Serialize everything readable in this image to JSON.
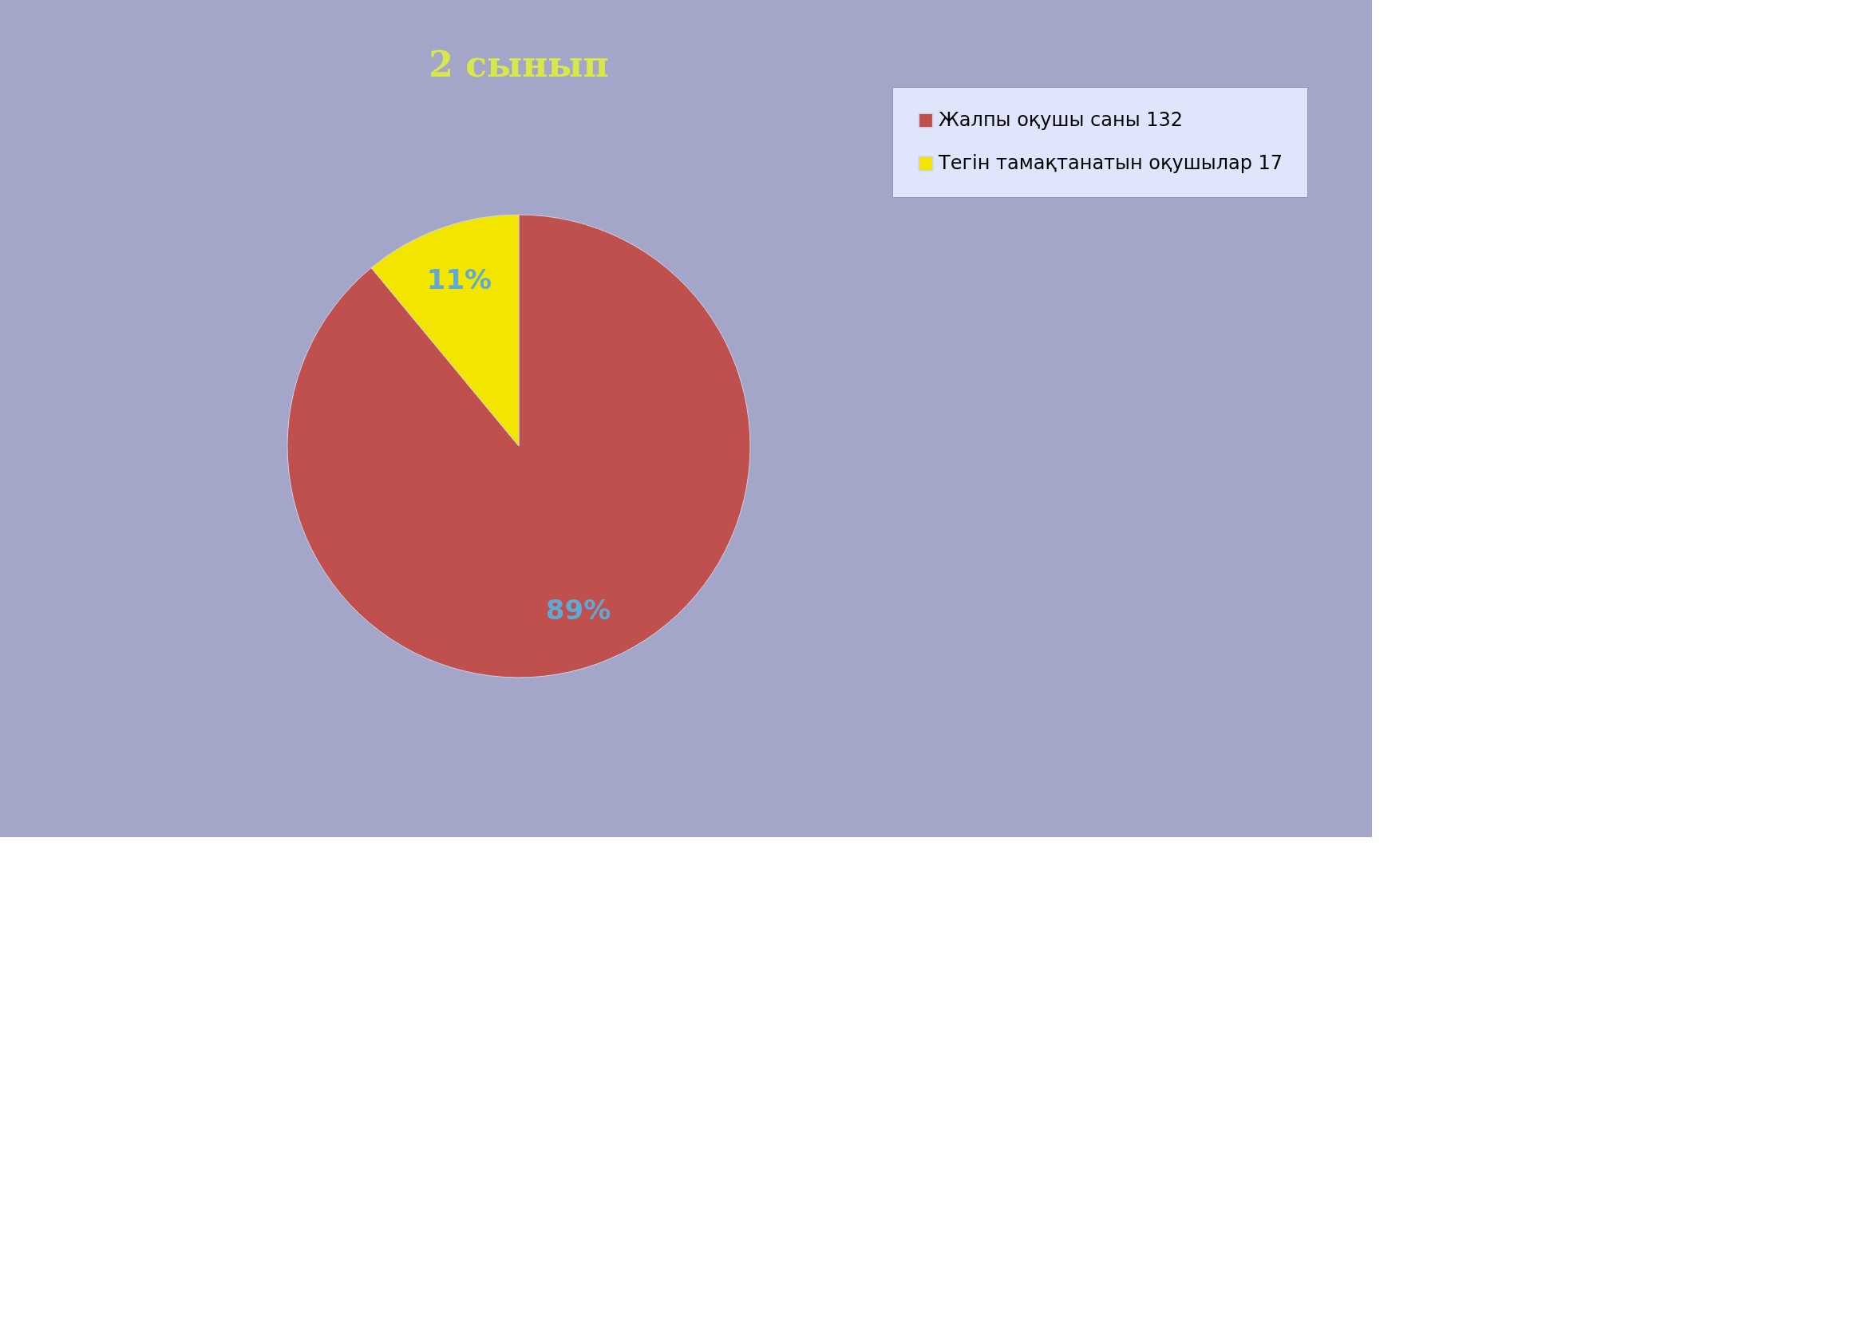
{
  "chart_data": {
    "type": "pie",
    "title": "2 сынып",
    "categories": [
      "Жалпы оқушы саны 132",
      "Тегін тамақтанатын оқушылар 17"
    ],
    "values": [
      89,
      11
    ],
    "value_labels": [
      "89%",
      "11%"
    ],
    "colors": [
      "#c0504d",
      "#f2e600"
    ],
    "legend": "right"
  }
}
